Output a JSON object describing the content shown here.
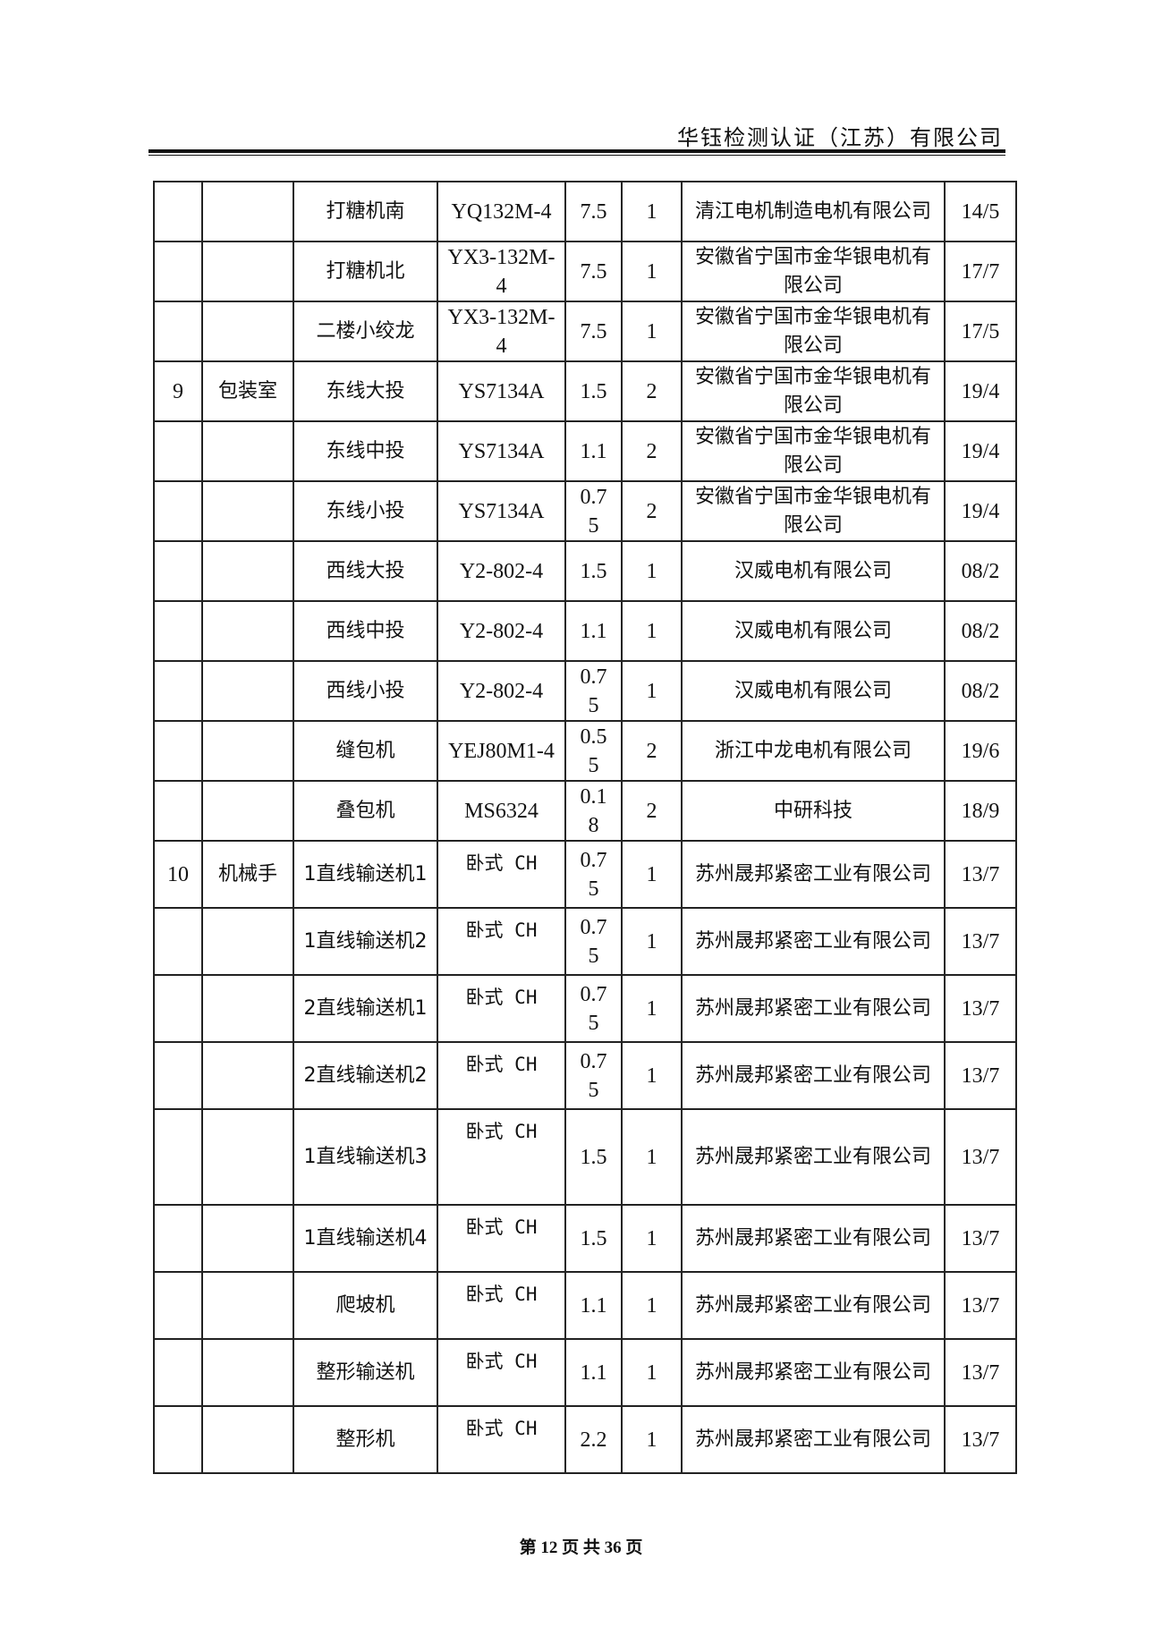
{
  "header": {
    "company": "华钰检测认证（江苏）有限公司"
  },
  "table": {
    "rows": [
      {
        "no": "",
        "area": "",
        "name": "打糖机南",
        "model": "YQ132M-4",
        "power": "7.5",
        "qty": "1",
        "maker": "清江电机制造电机有限公司",
        "date": "14/5"
      },
      {
        "no": "",
        "area": "",
        "name": "打糖机北",
        "model": "YX3-132M-4",
        "power": "7.5",
        "qty": "1",
        "maker": "安徽省宁国市金华银电机有限公司",
        "date": "17/7"
      },
      {
        "no": "",
        "area": "",
        "name": "二楼小绞龙",
        "model": "YX3-132M-4",
        "power": "7.5",
        "qty": "1",
        "maker": "安徽省宁国市金华银电机有限公司",
        "date": "17/5"
      },
      {
        "no": "9",
        "area": "包装室",
        "name": "东线大投",
        "model": "YS7134A",
        "power": "1.5",
        "qty": "2",
        "maker": "安徽省宁国市金华银电机有限公司",
        "date": "19/4"
      },
      {
        "no": "",
        "area": "",
        "name": "东线中投",
        "model": "YS7134A",
        "power": "1.1",
        "qty": "2",
        "maker": "安徽省宁国市金华银电机有限公司",
        "date": "19/4"
      },
      {
        "no": "",
        "area": "",
        "name": "东线小投",
        "model": "YS7134A",
        "power": "0.75",
        "qty": "2",
        "maker": "安徽省宁国市金华银电机有限公司",
        "date": "19/4"
      },
      {
        "no": "",
        "area": "",
        "name": "西线大投",
        "model": "Y2-802-4",
        "power": "1.5",
        "qty": "1",
        "maker": "汉威电机有限公司",
        "date": "08/2"
      },
      {
        "no": "",
        "area": "",
        "name": "西线中投",
        "model": "Y2-802-4",
        "power": "1.1",
        "qty": "1",
        "maker": "汉威电机有限公司",
        "date": "08/2"
      },
      {
        "no": "",
        "area": "",
        "name": "西线小投",
        "model": "Y2-802-4",
        "power": "0.75",
        "qty": "1",
        "maker": "汉威电机有限公司",
        "date": "08/2"
      },
      {
        "no": "",
        "area": "",
        "name": "缝包机",
        "model": "YEJ80M1-4",
        "power": "0.55",
        "qty": "2",
        "maker": "浙江中龙电机有限公司",
        "date": "19/6"
      },
      {
        "no": "",
        "area": "",
        "name": "叠包机",
        "model": "MS6324",
        "power": "0.18",
        "qty": "2",
        "maker": "中研科技",
        "date": "18/9"
      },
      {
        "no": "10",
        "area": "机械手",
        "name": "1直线输送机1",
        "model": "卧式 CH",
        "power": "0.75",
        "qty": "1",
        "maker": "苏州晟邦紧密工业有限公司",
        "date": "13/7"
      },
      {
        "no": "",
        "area": "",
        "name": "1直线输送机2",
        "model": "卧式 CH",
        "power": "0.75",
        "qty": "1",
        "maker": "苏州晟邦紧密工业有限公司",
        "date": "13/7"
      },
      {
        "no": "",
        "area": "",
        "name": "2直线输送机1",
        "model": "卧式 CH",
        "power": "0.75",
        "qty": "1",
        "maker": "苏州晟邦紧密工业有限公司",
        "date": "13/7"
      },
      {
        "no": "",
        "area": "",
        "name": "2直线输送机2",
        "model": "卧式 CH",
        "power": "0.75",
        "qty": "1",
        "maker": "苏州晟邦紧密工业有限公司",
        "date": "13/7"
      },
      {
        "no": "",
        "area": "",
        "name": "1直线输送机3",
        "model": "卧式 CH",
        "power": "1.5",
        "qty": "1",
        "maker": "苏州晟邦紧密工业有限公司",
        "date": "13/7"
      },
      {
        "no": "",
        "area": "",
        "name": "1直线输送机4",
        "model": "卧式 CH",
        "power": "1.5",
        "qty": "1",
        "maker": "苏州晟邦紧密工业有限公司",
        "date": "13/7"
      },
      {
        "no": "",
        "area": "",
        "name": "爬坡机",
        "model": "卧式 CH",
        "power": "1.1",
        "qty": "1",
        "maker": "苏州晟邦紧密工业有限公司",
        "date": "13/7"
      },
      {
        "no": "",
        "area": "",
        "name": "整形输送机",
        "model": "卧式 CH",
        "power": "1.1",
        "qty": "1",
        "maker": "苏州晟邦紧密工业有限公司",
        "date": "13/7"
      },
      {
        "no": "",
        "area": "",
        "name": "整形机",
        "model": "卧式 CH",
        "power": "2.2",
        "qty": "1",
        "maker": "苏州晟邦紧密工业有限公司",
        "date": "13/7"
      }
    ]
  },
  "footer": {
    "page": "第 12 页 共 36 页"
  }
}
